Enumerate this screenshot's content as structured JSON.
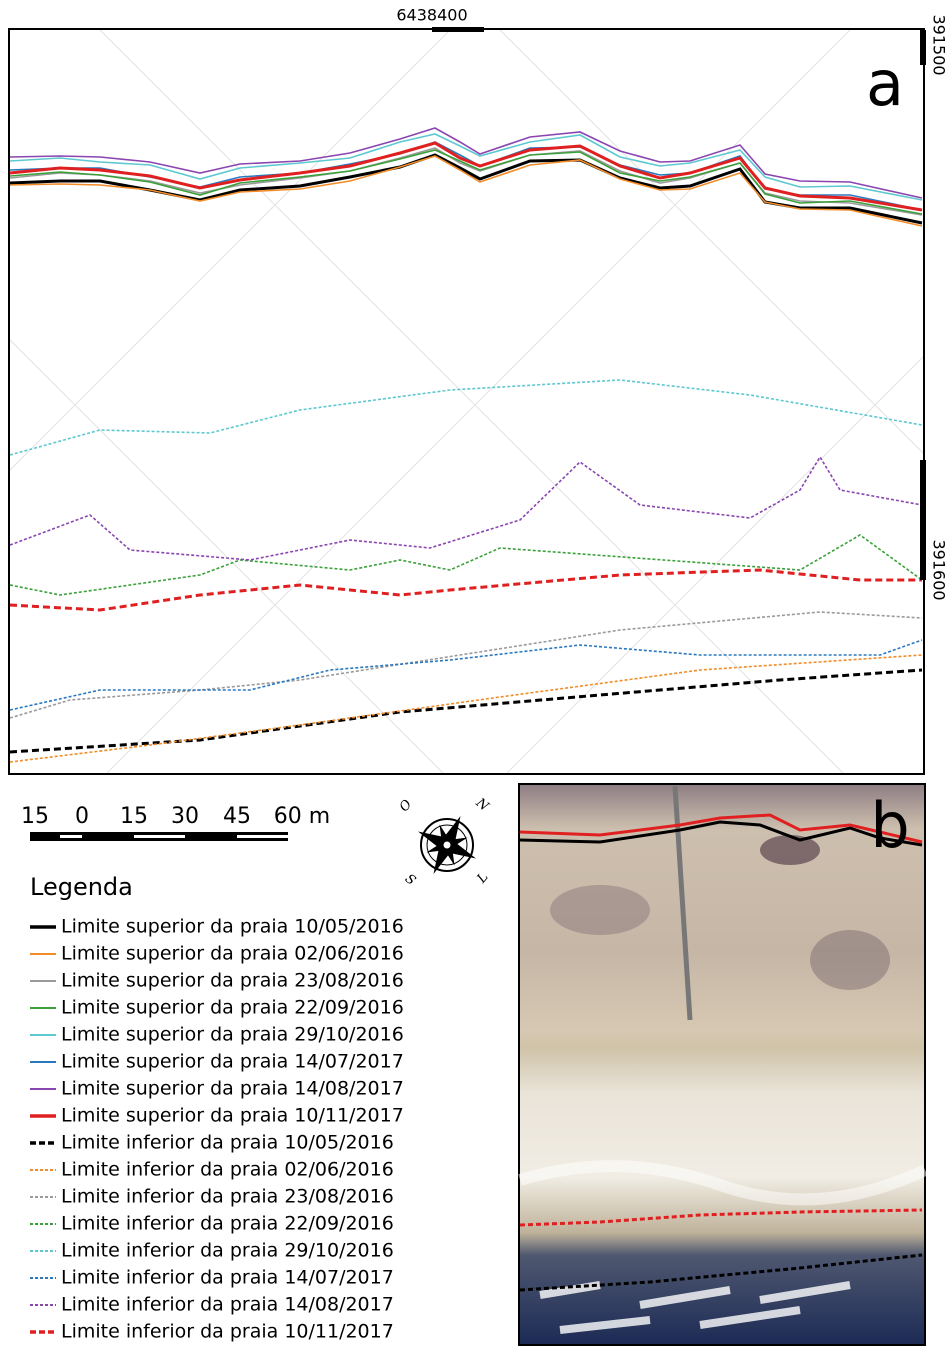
{
  "panels": {
    "a": {
      "label": "a",
      "top_coordinate": "6438400",
      "right_coordinates": [
        "391500",
        "391600"
      ]
    },
    "b": {
      "label": "b"
    }
  },
  "scale_bar": {
    "labels": [
      "15",
      "0",
      "15",
      "30",
      "45",
      "60 m"
    ]
  },
  "compass": {
    "labels": [
      "N",
      "L",
      "S",
      "O"
    ]
  },
  "legend": {
    "title": "Legenda",
    "items": [
      {
        "label": "Limite superior da praia 10/05/2016",
        "color": "#000000",
        "style": "solid"
      },
      {
        "label": "Limite superior da praia 02/06/2016",
        "color": "#f28c28",
        "style": "solid"
      },
      {
        "label": "Limite superior da praia 23/08/2016",
        "color": "#9a9a9a",
        "style": "solid"
      },
      {
        "label": "Limite superior da praia 22/09/2016",
        "color": "#3aa13a",
        "style": "solid"
      },
      {
        "label": "Limite superior da praia 29/10/2016",
        "color": "#5cc8d0",
        "style": "solid"
      },
      {
        "label": "Limite superior da praia 14/07/2017",
        "color": "#2a78c0",
        "style": "solid"
      },
      {
        "label": "Limite superior da praia 14/08/2017",
        "color": "#8a45b0",
        "style": "solid"
      },
      {
        "label": "Limite superior da praia 10/11/2017",
        "color": "#e02020",
        "style": "solid"
      },
      {
        "label": "Limite inferior da praia 10/05/2016",
        "color": "#000000",
        "style": "dashed"
      },
      {
        "label": "Limite inferior da praia 02/06/2016",
        "color": "#f28c28",
        "style": "dashed"
      },
      {
        "label": "Limite inferior da praia 23/08/2016",
        "color": "#9a9a9a",
        "style": "dashed"
      },
      {
        "label": "Limite inferior da praia 22/09/2016",
        "color": "#3aa13a",
        "style": "dashed"
      },
      {
        "label": "Limite inferior da praia 29/10/2016",
        "color": "#5cc8d0",
        "style": "dashed"
      },
      {
        "label": "Limite inferior da praia 14/07/2017",
        "color": "#2a78c0",
        "style": "dashed"
      },
      {
        "label": "Limite inferior da praia 14/08/2017",
        "color": "#8a45b0",
        "style": "dashed"
      },
      {
        "label": "Limite inferior da praia 10/11/2017",
        "color": "#e02020",
        "style": "dashed"
      }
    ]
  }
}
